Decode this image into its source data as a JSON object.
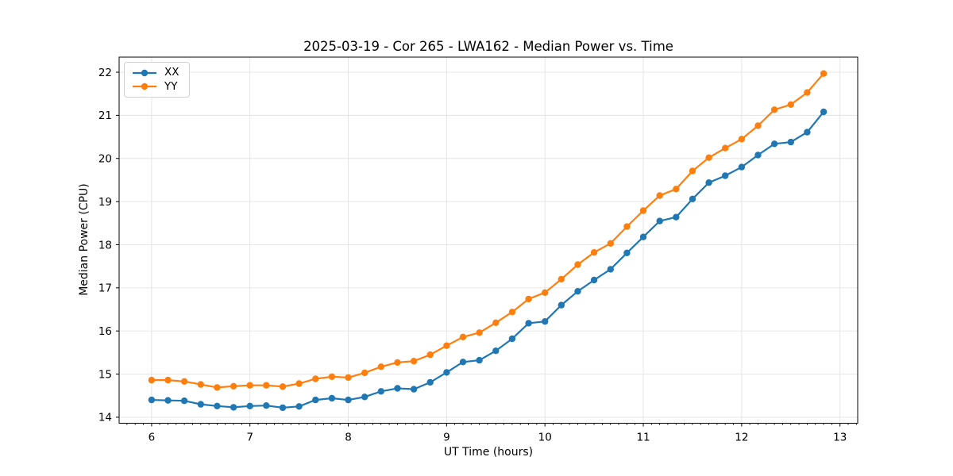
{
  "figure": {
    "background": "#ffffff",
    "text_color": "#000000",
    "grid_color": "#e3e3e3",
    "spine_color": "#000000"
  },
  "chart_data": {
    "type": "line",
    "title": "2025-03-19 - Cor 265 - LWA162 - Median Power vs. Time",
    "xlabel": "UT Time (hours)",
    "ylabel": "Median Power (CPU)",
    "xlim": [
      5.67,
      13.18
    ],
    "ylim": [
      13.86,
      22.35
    ],
    "x_ticks": [
      6,
      7,
      8,
      9,
      10,
      11,
      12,
      13
    ],
    "y_ticks": [
      14,
      15,
      16,
      17,
      18,
      19,
      20,
      21,
      22
    ],
    "x_minor_tick_step": 0.08333,
    "grid": true,
    "legend_position": "upper-left",
    "marker": "circle",
    "x": [
      6.0,
      6.1667,
      6.3333,
      6.5,
      6.6667,
      6.8333,
      7.0,
      7.1667,
      7.3333,
      7.5,
      7.6667,
      7.8333,
      8.0,
      8.1667,
      8.3333,
      8.5,
      8.6667,
      8.8333,
      9.0,
      9.1667,
      9.3333,
      9.5,
      9.6667,
      9.8333,
      10.0,
      10.1667,
      10.3333,
      10.5,
      10.6667,
      10.8333,
      11.0,
      11.1667,
      11.3333,
      11.5,
      11.6667,
      11.8333,
      12.0,
      12.1667,
      12.3333,
      12.5,
      12.6667,
      12.8333
    ],
    "series": [
      {
        "name": "XX",
        "color": "#1f77b4",
        "values": [
          14.4,
          14.39,
          14.38,
          14.3,
          14.26,
          14.23,
          14.26,
          14.27,
          14.22,
          14.25,
          14.4,
          14.44,
          14.4,
          14.47,
          14.6,
          14.67,
          14.65,
          14.81,
          15.04,
          15.28,
          15.32,
          15.54,
          15.82,
          16.18,
          16.22,
          16.6,
          16.92,
          17.18,
          17.43,
          17.81,
          18.18,
          18.55,
          18.64,
          19.06,
          19.44,
          19.6,
          19.8,
          20.08,
          20.34,
          20.38,
          20.61,
          21.08
        ]
      },
      {
        "name": "YY",
        "color": "#ff7f0e",
        "values": [
          14.86,
          14.86,
          14.83,
          14.76,
          14.69,
          14.72,
          14.74,
          14.74,
          14.71,
          14.78,
          14.89,
          14.94,
          14.92,
          15.03,
          15.17,
          15.27,
          15.3,
          15.45,
          15.66,
          15.86,
          15.96,
          16.19,
          16.44,
          16.74,
          16.89,
          17.2,
          17.54,
          17.82,
          18.03,
          18.42,
          18.79,
          19.14,
          19.29,
          19.71,
          20.02,
          20.24,
          20.45,
          20.76,
          21.13,
          21.25,
          21.53,
          21.97
        ]
      }
    ]
  }
}
